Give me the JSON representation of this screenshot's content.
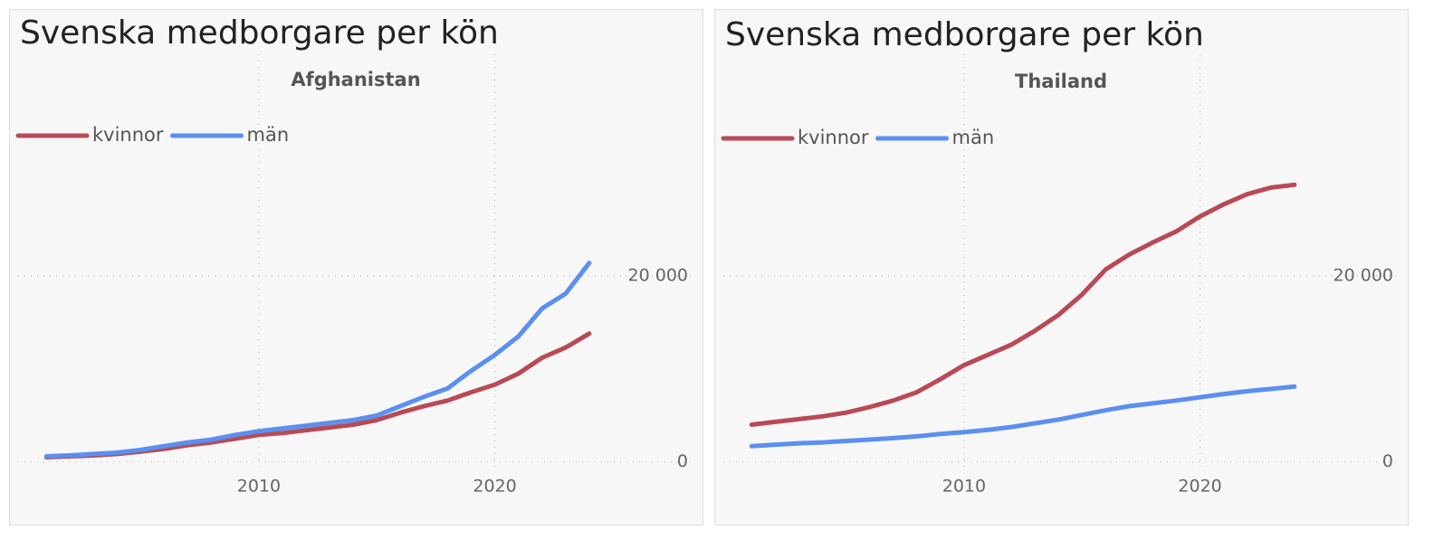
{
  "chart_data": [
    {
      "type": "line",
      "title": "Svenska medborgare per kön",
      "subtitle": "Afghanistan",
      "x": [
        2001,
        2002,
        2003,
        2004,
        2005,
        2006,
        2007,
        2008,
        2009,
        2010,
        2011,
        2012,
        2013,
        2014,
        2015,
        2016,
        2017,
        2018,
        2019,
        2020,
        2021,
        2022,
        2023,
        2024
      ],
      "series": [
        {
          "name": "kvinnor",
          "color": "#b94a55",
          "values": [
            500,
            600,
            700,
            850,
            1100,
            1400,
            1800,
            2100,
            2500,
            2900,
            3100,
            3400,
            3700,
            4000,
            4500,
            5300,
            6000,
            6600,
            7500,
            8300,
            9500,
            11200,
            12300,
            13800
          ]
        },
        {
          "name": "män",
          "color": "#5b8ff0",
          "values": [
            600,
            700,
            850,
            1000,
            1300,
            1700,
            2100,
            2400,
            2900,
            3300,
            3600,
            3900,
            4200,
            4500,
            5000,
            6000,
            7000,
            7900,
            9800,
            11500,
            13500,
            16500,
            18100,
            21400
          ]
        }
      ],
      "xlim": [
        1999.8,
        2025.5
      ],
      "ylim": [
        -4800,
        38000
      ],
      "xticks": [
        2010,
        2020
      ],
      "yticks": [
        0,
        {
          "value": 20000,
          "label": "20 000"
        }
      ],
      "grid": true
    },
    {
      "type": "line",
      "title": "Svenska medborgare per kön",
      "subtitle": "Thailand",
      "x": [
        2001,
        2002,
        2003,
        2004,
        2005,
        2006,
        2007,
        2008,
        2009,
        2010,
        2011,
        2012,
        2013,
        2014,
        2015,
        2016,
        2017,
        2018,
        2019,
        2020,
        2021,
        2022,
        2023,
        2024
      ],
      "series": [
        {
          "name": "kvinnor",
          "color": "#b94a55",
          "values": [
            4000,
            4300,
            4600,
            4900,
            5300,
            5900,
            6600,
            7500,
            8900,
            10400,
            11500,
            12600,
            14100,
            15800,
            18000,
            20700,
            22300,
            23600,
            24800,
            26400,
            27700,
            28800,
            29500,
            29800
          ]
        },
        {
          "name": "män",
          "color": "#5b8ff0",
          "values": [
            1700,
            1850,
            2000,
            2100,
            2250,
            2400,
            2550,
            2750,
            3000,
            3200,
            3450,
            3750,
            4150,
            4550,
            5050,
            5550,
            6000,
            6300,
            6600,
            6950,
            7300,
            7600,
            7850,
            8100
          ]
        }
      ],
      "xlim": [
        1999.8,
        2025.5
      ],
      "ylim": [
        -4800,
        38000
      ],
      "xticks": [
        2010,
        2020
      ],
      "yticks": [
        0,
        {
          "value": 20000,
          "label": "20 000"
        }
      ],
      "grid": true
    }
  ]
}
